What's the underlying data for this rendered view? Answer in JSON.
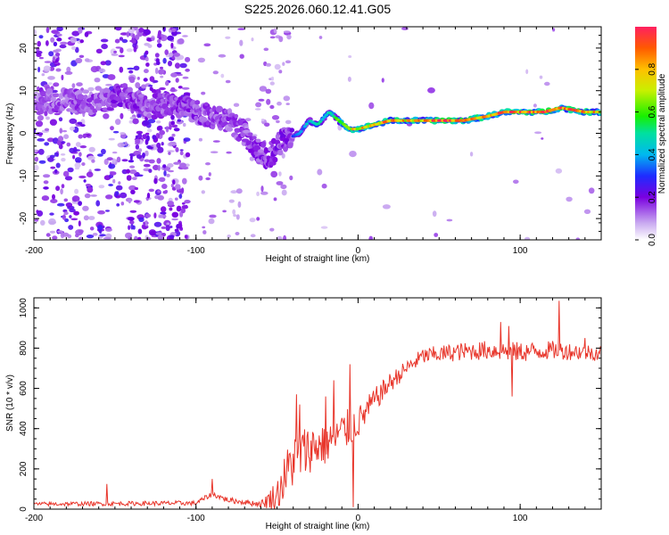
{
  "title": "S225.2026.060.12.41.G05",
  "chart_data": [
    {
      "type": "heatmap",
      "name": "spectrogram",
      "xlabel": "Height of straight line (km)",
      "ylabel": "Frequency (Hz)",
      "xlim": [
        -200,
        150
      ],
      "ylim": [
        -25,
        25
      ],
      "xticks": [
        -200,
        -100,
        0,
        100
      ],
      "yticks": [
        -20,
        -10,
        0,
        10,
        20
      ],
      "ridge": {
        "x": [
          -200,
          -180,
          -160,
          -145,
          -130,
          -115,
          -100,
          -90,
          -80,
          -70,
          -62,
          -55,
          -48,
          -42,
          -36,
          -30,
          -25,
          -18,
          -12,
          -5,
          0,
          10,
          20,
          35,
          50,
          65,
          80,
          90,
          100,
          115,
          125,
          140,
          150
        ],
        "y": [
          7,
          8,
          7,
          9,
          6,
          7,
          5,
          4,
          3,
          0,
          -4,
          -6,
          -2,
          -1,
          0,
          3,
          2,
          5,
          3,
          1,
          1,
          2,
          3,
          3,
          3,
          3,
          4,
          5,
          5,
          5,
          6,
          5,
          5
        ],
        "amplitude": [
          0.25,
          0.3,
          0.3,
          0.35,
          0.3,
          0.3,
          0.35,
          0.3,
          0.3,
          0.3,
          0.35,
          0.35,
          0.35,
          0.35,
          0.4,
          0.45,
          0.5,
          0.55,
          0.6,
          0.75,
          0.8,
          0.9,
          0.85,
          0.8,
          1.0,
          0.9,
          0.85,
          0.95,
          0.9,
          1.0,
          0.95,
          0.9,
          0.85
        ]
      },
      "colorbar": {
        "label": "Normalized spectral amplitude",
        "range": [
          0,
          1
        ],
        "ticks": [
          0.0,
          0.2,
          0.4,
          0.6,
          0.8
        ]
      }
    },
    {
      "type": "line",
      "name": "snr",
      "xlabel": "Height of straight line (km)",
      "ylabel": "SNR (10 * v/v)",
      "xlim": [
        -200,
        150
      ],
      "ylim": [
        0,
        1050
      ],
      "xticks": [
        -200,
        -100,
        0,
        100
      ],
      "yticks": [
        0,
        200,
        400,
        600,
        800,
        1000
      ],
      "color": "#e8352a",
      "trend": {
        "x": [
          -200,
          -100,
          -90,
          -80,
          -60,
          -50,
          -40,
          -30,
          -20,
          -10,
          0,
          10,
          20,
          30,
          40,
          60,
          80,
          100,
          120,
          150
        ],
        "y": [
          25,
          30,
          75,
          45,
          25,
          70,
          250,
          300,
          330,
          380,
          430,
          540,
          630,
          700,
          760,
          780,
          790,
          780,
          790,
          775
        ]
      },
      "noise": {
        "x": [
          -200,
          -100,
          -60,
          -40,
          -30,
          -10,
          0,
          10,
          30,
          60,
          100,
          150
        ],
        "y": [
          10,
          12,
          15,
          150,
          120,
          110,
          80,
          60,
          40,
          45,
          50,
          40
        ]
      },
      "spikes": [
        {
          "x": -155,
          "y": 125
        },
        {
          "x": -90,
          "y": 150
        },
        {
          "x": -38,
          "y": 570
        },
        {
          "x": -36,
          "y": 520
        },
        {
          "x": -20,
          "y": 560
        },
        {
          "x": -15,
          "y": 640
        },
        {
          "x": -5,
          "y": 720
        },
        {
          "x": -3,
          "y": 10
        },
        {
          "x": 88,
          "y": 930
        },
        {
          "x": 93,
          "y": 910
        },
        {
          "x": 124,
          "y": 1035
        },
        {
          "x": 140,
          "y": 850
        },
        {
          "x": 95,
          "y": 560
        }
      ]
    }
  ]
}
